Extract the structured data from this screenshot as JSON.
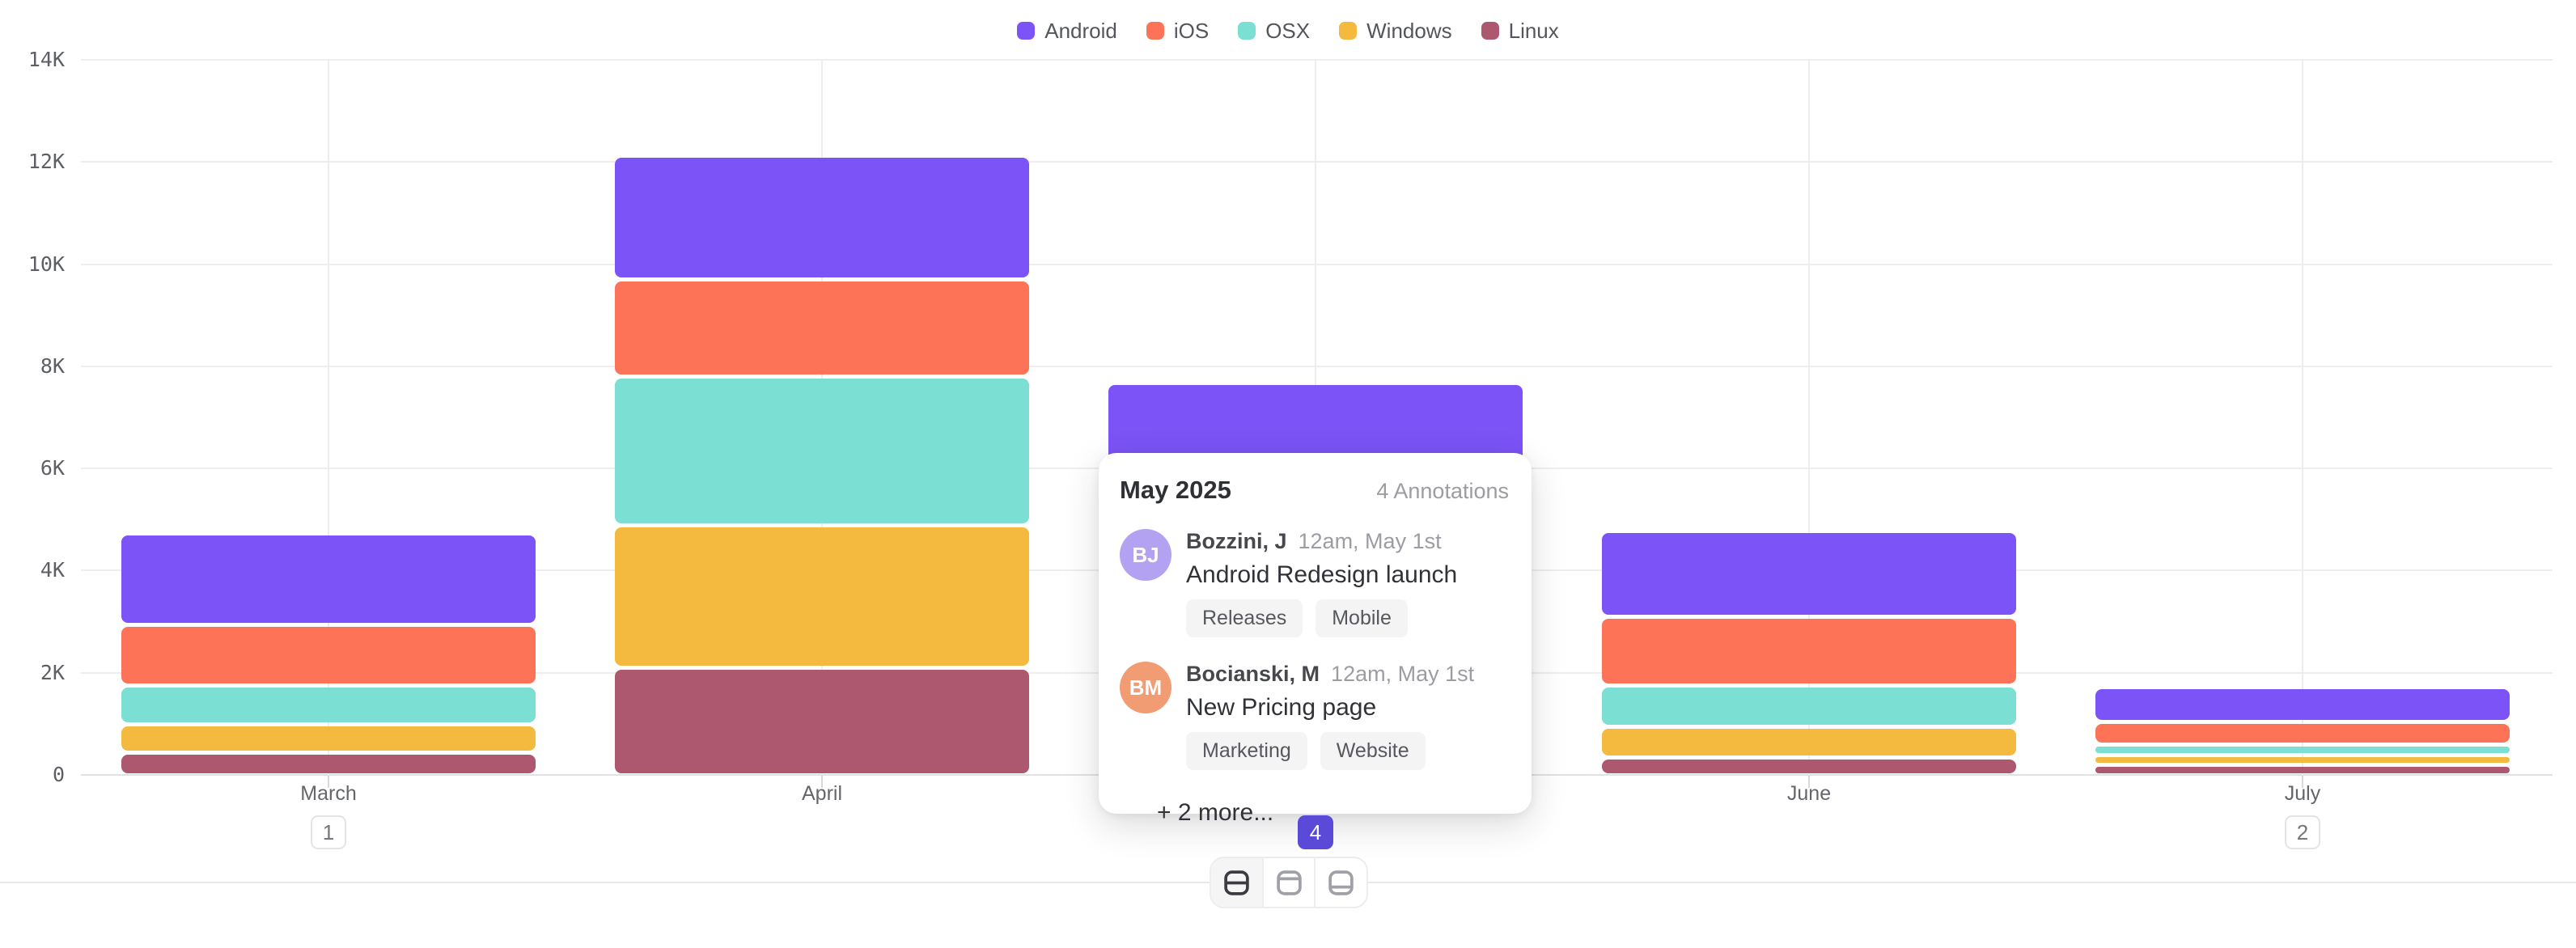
{
  "legend": {
    "items": [
      {
        "label": "Android",
        "color": "#7B53F6"
      },
      {
        "label": "iOS",
        "color": "#FC7357"
      },
      {
        "label": "OSX",
        "color": "#7CDFD3"
      },
      {
        "label": "Windows",
        "color": "#F4BA3F"
      },
      {
        "label": "Linux",
        "color": "#AE5870"
      }
    ]
  },
  "y_axis": {
    "labels": [
      "14K",
      "12K",
      "10K",
      "8K",
      "6K",
      "4K",
      "2K",
      "0"
    ],
    "values": [
      14000,
      12000,
      10000,
      8000,
      6000,
      4000,
      2000,
      0
    ]
  },
  "months": [
    {
      "label": "March",
      "badge": "1",
      "badge_variant": "outline"
    },
    {
      "label": "April",
      "badge": null,
      "badge_variant": null
    },
    {
      "label": "May",
      "badge": "4",
      "badge_variant": "solid"
    },
    {
      "label": "June",
      "badge": null,
      "badge_variant": null
    },
    {
      "label": "July",
      "badge": "2",
      "badge_variant": "outline"
    }
  ],
  "chart_data": {
    "type": "bar",
    "stacked": true,
    "categories": [
      "March",
      "April",
      "May",
      "June",
      "July"
    ],
    "series": [
      {
        "name": "Android",
        "color": "#7B53F6",
        "values": [
          1700,
          2350,
          2200,
          1600,
          600
        ]
      },
      {
        "name": "iOS",
        "color": "#FC7357",
        "values": [
          1200,
          1900,
          1600,
          1350,
          450
        ]
      },
      {
        "name": "OSX",
        "color": "#7CDFD3",
        "values": [
          750,
          2900,
          1500,
          800,
          200
        ]
      },
      {
        "name": "Windows",
        "color": "#F4BA3F",
        "values": [
          550,
          2800,
          1200,
          600,
          200
        ]
      },
      {
        "name": "Linux",
        "color": "#AE5870",
        "values": [
          450,
          2100,
          1100,
          350,
          200
        ]
      }
    ],
    "stack_order_bottom_to_top": [
      "Linux",
      "Windows",
      "OSX",
      "iOS",
      "Android"
    ],
    "title": "",
    "xlabel": "",
    "ylabel": "",
    "ylim": [
      0,
      14000
    ],
    "grid": true,
    "legend_position": "top",
    "annotation_counts": {
      "March": 1,
      "May": 4,
      "July": 2
    }
  },
  "popover": {
    "month": "May",
    "title": "May 2025",
    "count_label": "4 Annotations",
    "entries": [
      {
        "initials": "BJ",
        "avatar_color": "#B3A2F1",
        "author": "Bozzini, J",
        "timestamp": "12am, May 1st",
        "title": "Android Redesign launch",
        "tags": [
          "Releases",
          "Mobile"
        ]
      },
      {
        "initials": "BM",
        "avatar_color": "#F19C73",
        "author": "Bocianski, M",
        "timestamp": "12am, May 1st",
        "title": "New Pricing page",
        "tags": [
          "Marketing",
          "Website"
        ]
      }
    ],
    "more_label": "+ 2 more..."
  },
  "footer": {
    "layout_options": [
      {
        "icon": "layout-split-rows-icon",
        "active": true
      },
      {
        "icon": "layout-header-top-icon",
        "active": false
      },
      {
        "icon": "layout-footer-bottom-icon",
        "active": false
      }
    ]
  }
}
